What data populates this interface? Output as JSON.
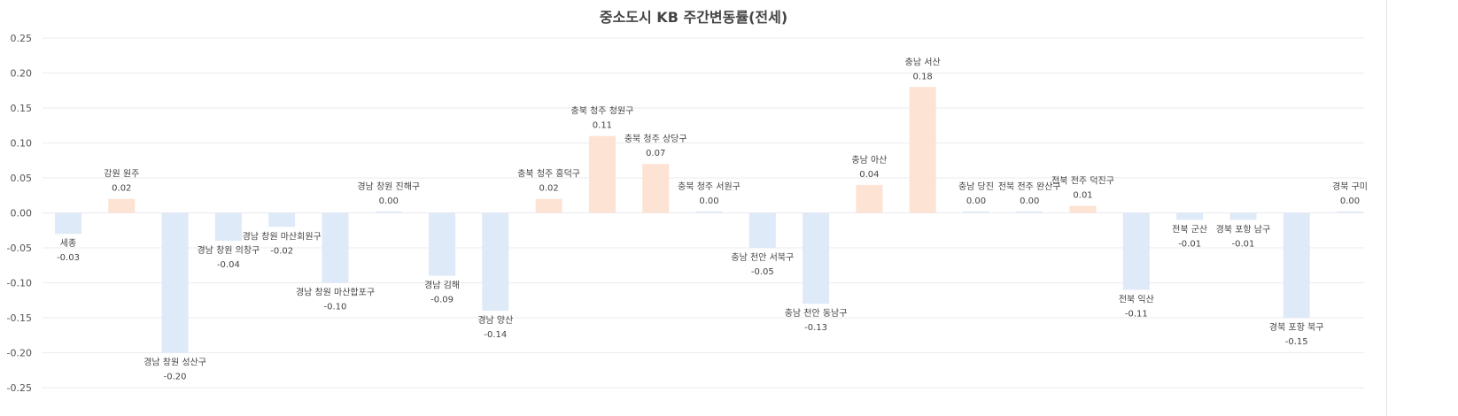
{
  "chart_data": {
    "type": "bar",
    "title": "중소도시 KB 주간변동률(전세)",
    "xlabel": "",
    "ylabel": "",
    "ylim": [
      -0.25,
      0.25
    ],
    "yticks": [
      "0.25",
      "0.20",
      "0.15",
      "0.10",
      "0.05",
      "0.00",
      "-0.05",
      "-0.10",
      "-0.15",
      "-0.20",
      "-0.25"
    ],
    "grid": true,
    "categories": [
      "세종",
      "강원 원주",
      "경남 창원 성산구",
      "경남 창원 의창구",
      "경남 창원 마산회원구",
      "경남 창원 마산합포구",
      "경남 창원 진해구",
      "경남 김해",
      "경남 양산",
      "충북 청주 흥덕구",
      "충북 청주 청원구",
      "충북 청주 상당구",
      "충북 청주 서원구",
      "충남 천안 서북구",
      "충남 천안 동남구",
      "충남 아산",
      "충남 서산",
      "충남 당진",
      "전북 전주 완산구",
      "전북 전주 덕진구",
      "전북 익산",
      "전북 군산",
      "경북 포항 남구",
      "경북 포항 북구",
      "경북 구미"
    ],
    "values": [
      -0.03,
      0.02,
      -0.2,
      -0.04,
      -0.02,
      -0.1,
      0.0,
      -0.09,
      -0.14,
      0.02,
      0.11,
      0.07,
      0.0,
      -0.05,
      -0.13,
      0.04,
      0.18,
      0.0,
      0.0,
      0.01,
      -0.11,
      -0.01,
      -0.01,
      -0.15,
      0.0
    ],
    "value_labels": [
      "-0.03",
      "0.02",
      "-0.20",
      "-0.04",
      "-0.02",
      "-0.10",
      "0.00",
      "-0.09",
      "-0.14",
      "0.02",
      "0.11",
      "0.07",
      "0.00",
      "-0.05",
      "-0.13",
      "0.04",
      "0.18",
      "0.00",
      "0.00",
      "0.01",
      "-0.11",
      "-0.01",
      "-0.01",
      "-0.15",
      "0.00"
    ],
    "colors": {
      "positive": "#fce3d3",
      "negative": "#deeaf7",
      "grid": "#ebebf2"
    }
  }
}
